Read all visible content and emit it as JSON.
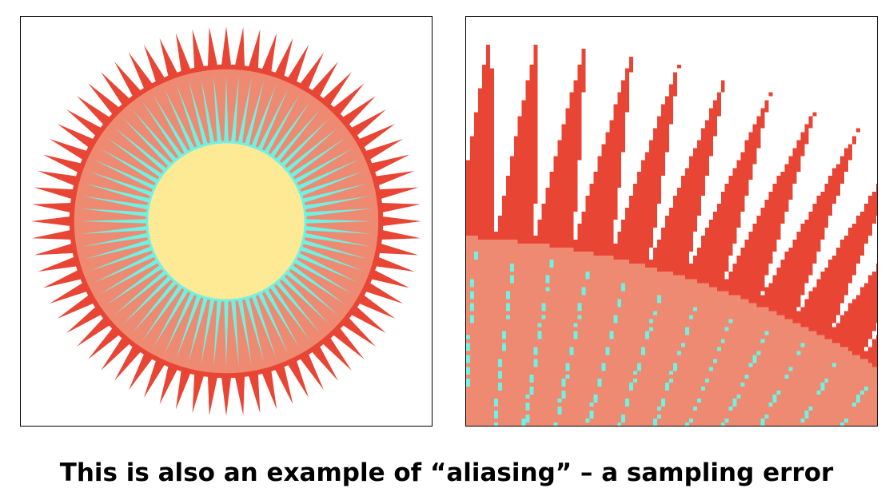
{
  "caption": "This is also an example of “aliasing” – a sampling error",
  "figure": {
    "spike_count": 72,
    "colors": {
      "outer_spikes": "#E84535",
      "ring": "#EE8A72",
      "inner_rays": "#6FF2E3",
      "center": "#FEE994",
      "background": "#FFFFFF",
      "border": "#000000"
    },
    "left_panel": "full view of star-burst pattern",
    "right_panel": "magnified pixelated view of upper-right edge"
  }
}
